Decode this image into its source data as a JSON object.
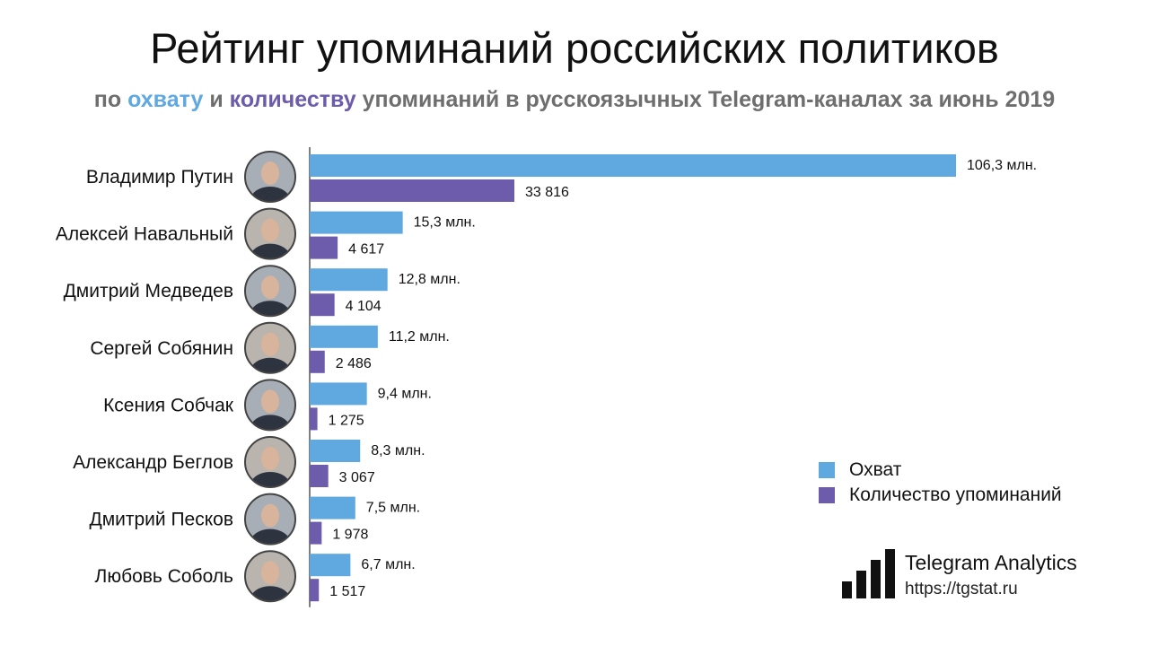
{
  "header": {
    "title": "Рейтинг упоминаний российских политиков",
    "subtitle_pre": "по ",
    "subtitle_reach": "охвату",
    "subtitle_and": " и ",
    "subtitle_count": "количеству",
    "subtitle_post": " упоминаний в русскоязычных Telegram-каналах за июнь 2019"
  },
  "colors": {
    "reach": "#5fa8e0",
    "count": "#6d5bab",
    "subtitle": "#6e6e6e"
  },
  "chart_data": {
    "type": "bar",
    "orientation": "horizontal",
    "categories": [
      "Владимир Путин",
      "Алексей Навальный",
      "Дмитрий Медведев",
      "Сергей Собянин",
      "Ксения Собчак",
      "Александр Беглов",
      "Дмитрий Песков",
      "Любовь Соболь"
    ],
    "series": [
      {
        "name": "Охват",
        "values": [
          106.3,
          15.3,
          12.8,
          11.2,
          9.4,
          8.3,
          7.5,
          6.7
        ],
        "labels": [
          "106,3 млн.",
          "15,3 млн.",
          "12,8 млн.",
          "11,2 млн.",
          "9,4 млн.",
          "8,3 млн.",
          "7,5 млн.",
          "6,7 млн."
        ],
        "color": "#5fa8e0"
      },
      {
        "name": "Количество упоминаний",
        "values": [
          33816,
          4617,
          4104,
          2486,
          1275,
          3067,
          1978,
          1517
        ],
        "labels": [
          "33 816",
          "4 617",
          "4 104",
          "2 486",
          "1 275",
          "3 067",
          "1 978",
          "1 517"
        ],
        "color": "#6d5bab"
      }
    ],
    "legend_position": "bottom-right",
    "avatars": [
      "person-photo",
      "person-photo",
      "person-photo",
      "person-photo",
      "person-photo",
      "person-photo",
      "person-photo",
      "person-photo"
    ]
  },
  "legend": {
    "reach_label": "Охват",
    "count_label": "Количество упоминаний"
  },
  "brand": {
    "name": "Telegram Analytics",
    "url": "https://tgstat.ru",
    "icon": "bar-chart-logo-icon"
  }
}
